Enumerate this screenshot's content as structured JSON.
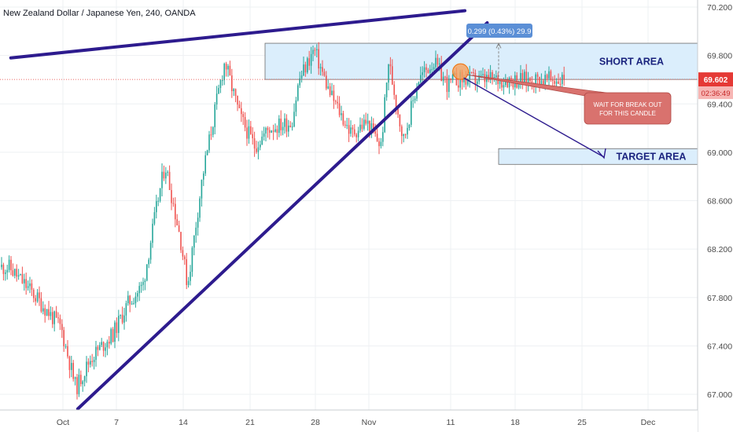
{
  "header": {
    "symbol_title": "New Zealand Dollar / Japanese Yen, 240, OANDA"
  },
  "colors": {
    "up": "#26a69a",
    "down": "#ef5350",
    "trendline": "#2d1b8e",
    "zone_fill": "#dbeefc",
    "zone_border": "#6b6b6b",
    "price_line": "#e53935",
    "callout_fill": "#d9726e",
    "axis_text": "#4a4a4a"
  },
  "annotations": {
    "short_area": "SHORT AREA",
    "target_area": "TARGET AREA",
    "callout_line1": "WAIT FOR BREAK OUT",
    "callout_line2": "FOR THIS CANDLE",
    "measure_label": "0.299 (0.43%) 29.9"
  },
  "price_scale": {
    "current_price": "69.602",
    "countdown": "02:36:49"
  },
  "chart_data": {
    "type": "candlestick",
    "title": "New Zealand Dollar / Japanese Yen, 240, OANDA",
    "xlabel": "",
    "ylabel": "",
    "ylim": [
      66.9,
      70.3
    ],
    "y_ticks": [
      "70.200",
      "69.800",
      "69.400",
      "69.000",
      "68.600",
      "68.200",
      "67.800",
      "67.400",
      "67.000"
    ],
    "x_ticks": [
      "Oct",
      "7",
      "14",
      "21",
      "28",
      "Nov",
      "11",
      "18",
      "25",
      "Dec"
    ],
    "grid": true,
    "last_price": 69.602,
    "zones": [
      {
        "name": "SHORT AREA",
        "low": 69.602,
        "high": 69.901
      },
      {
        "name": "TARGET AREA",
        "low": 68.9,
        "high": 69.03
      }
    ],
    "trendlines": [
      {
        "name": "resistance",
        "from": [
          "Sep 24",
          69.78
        ],
        "to": [
          "Nov 24",
          70.17
        ]
      },
      {
        "name": "support",
        "from": [
          "Oct 3",
          66.88
        ],
        "to": [
          "Nov 27",
          70.07
        ]
      }
    ],
    "path_points": [
      [
        "Sep 24",
        68.05
      ],
      [
        "Sep 27",
        67.85
      ],
      [
        "Oct 1",
        67.55
      ],
      [
        "Oct 3",
        67.05
      ],
      [
        "Oct 5",
        67.3
      ],
      [
        "Oct 8",
        67.5
      ],
      [
        "Oct 10",
        67.75
      ],
      [
        "Oct 12",
        67.9
      ],
      [
        "Oct 14",
        68.6
      ],
      [
        "Oct 15",
        68.9
      ],
      [
        "Oct 17",
        68.3
      ],
      [
        "Oct 18",
        67.9
      ],
      [
        "Oct 20",
        68.8
      ],
      [
        "Oct 22",
        69.45
      ],
      [
        "Oct 23",
        69.75
      ],
      [
        "Oct 25",
        69.3
      ],
      [
        "Oct 27",
        69.05
      ],
      [
        "Oct 29",
        69.2
      ],
      [
        "Nov 1",
        69.25
      ],
      [
        "Nov 2",
        69.6
      ],
      [
        "Nov 4",
        69.85
      ],
      [
        "Nov 6",
        69.5
      ],
      [
        "Nov 9",
        69.15
      ],
      [
        "Nov 11",
        69.25
      ],
      [
        "Nov 13",
        69.05
      ],
      [
        "Nov 14",
        69.75
      ],
      [
        "Nov 16",
        69.1
      ],
      [
        "Nov 17",
        69.35
      ],
      [
        "Nov 18",
        69.6
      ],
      [
        "Nov 20",
        69.75
      ],
      [
        "Nov 22",
        69.55
      ],
      [
        "Nov 23",
        69.6
      ]
    ]
  }
}
